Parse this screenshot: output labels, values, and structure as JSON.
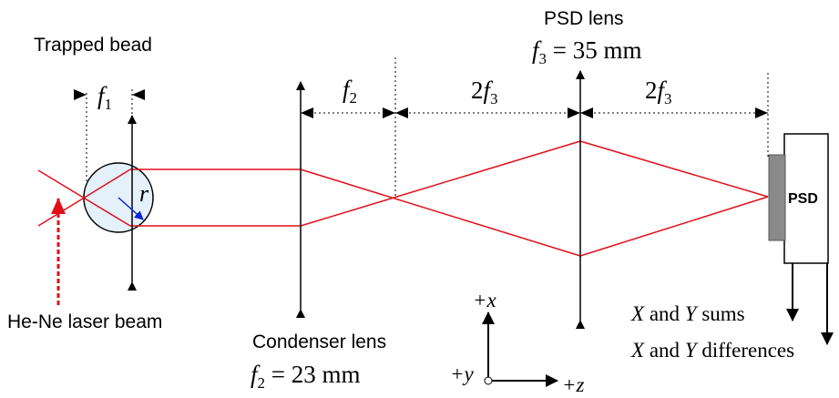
{
  "labels": {
    "trapped_bead": "Trapped bead",
    "psd_lens_title": "PSD lens",
    "laser_beam": "He-Ne laser beam",
    "condenser_lens": "Condenser lens",
    "psd_box": "PSD",
    "bead_radius": "r"
  },
  "f1": {
    "sym": "f",
    "sub": "1"
  },
  "f2": {
    "sym": "f",
    "sub": "2"
  },
  "gap_center": {
    "coef": "2",
    "sym": "f",
    "sub": "3"
  },
  "gap_right": {
    "coef": "2",
    "sym": "f",
    "sub": "3"
  },
  "psd_focal": {
    "sym": "f",
    "sub": "3",
    "rest": " = 35 mm"
  },
  "cond_focal": {
    "sym": "f",
    "sub": "2",
    "rest": " = 23 mm"
  },
  "axes": {
    "x": "+x",
    "y": "+y",
    "z": "+z"
  },
  "outputs": {
    "sums": {
      "v1": "X",
      "mid": " and ",
      "v2": "Y",
      "rest": " sums"
    },
    "diffs": {
      "v1": "X",
      "mid": " and ",
      "v2": "Y",
      "rest": " differences"
    }
  },
  "colors": {
    "beam": "#e0101a",
    "laser_arrow": "#e0101a",
    "radius_arrow": "#0a1fd6",
    "bead_fill": "#e4f1fa",
    "psd_detector": "#8a8a8a",
    "line": "#000000"
  }
}
